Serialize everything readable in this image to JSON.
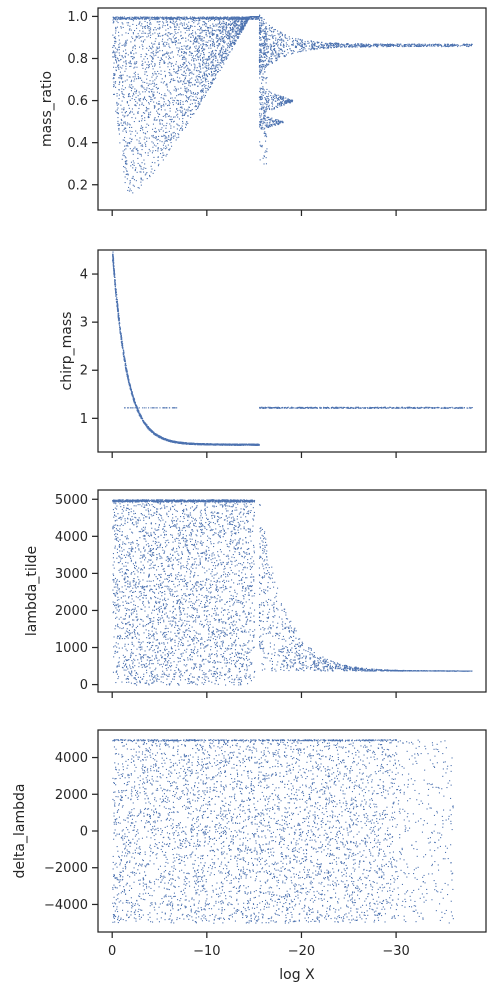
{
  "chart_data": [
    {
      "type": "scatter",
      "ylabel": "mass_ratio",
      "xlabel": "",
      "xlim": [
        1.5,
        -39.5
      ],
      "ylim": [
        0.08,
        1.04
      ],
      "x_ticks": [
        0,
        -10,
        -20,
        -30
      ],
      "y_ticks": [
        0.2,
        0.4,
        0.6,
        0.8,
        1.0
      ],
      "y_tick_labels": [
        "0.2",
        "0.4",
        "0.6",
        "0.8",
        "1.0"
      ],
      "show_x_tick_labels": false,
      "color": "#4c72b0",
      "regions": [
        {
          "x": [
            0,
            -15.5
          ],
          "y": [
            0.13,
            1.0
          ],
          "description": "dense cloud, lower edge rising from 0.13 near x=-1.5 to 1.0 by x=-15"
        },
        {
          "x": [
            -15.5,
            -38
          ],
          "y": [
            0.84,
            0.9
          ],
          "description": "narrowing band converging to ~0.86"
        },
        {
          "x": [
            -15.5,
            -19
          ],
          "y": [
            0.55,
            0.68
          ],
          "description": "wedge near 0.6"
        },
        {
          "x": [
            -15.5,
            -18
          ],
          "y": [
            0.45,
            0.55
          ],
          "description": "wedge near 0.5"
        }
      ]
    },
    {
      "type": "scatter",
      "ylabel": "chirp_mass",
      "xlabel": "",
      "xlim": [
        1.5,
        -39.5
      ],
      "ylim": [
        0.3,
        4.5
      ],
      "x_ticks": [
        0,
        -10,
        -20,
        -30
      ],
      "y_ticks": [
        1,
        2,
        3,
        4
      ],
      "y_tick_labels": [
        "1",
        "2",
        "3",
        "4"
      ],
      "show_x_tick_labels": false,
      "color": "#4c72b0",
      "regions": [
        {
          "x": [
            0,
            -13
          ],
          "y": [
            0.45,
            4.3
          ],
          "description": "decaying curve from ~4.3 at x=0 down to ~0.45"
        },
        {
          "x": [
            -15.5,
            -38
          ],
          "y": [
            1.22,
            1.24
          ],
          "description": "flat line at ~1.23"
        }
      ]
    },
    {
      "type": "scatter",
      "ylabel": "lambda_tilde",
      "xlabel": "",
      "xlim": [
        1.5,
        -39.5
      ],
      "ylim": [
        -200,
        5250
      ],
      "x_ticks": [
        0,
        -10,
        -20,
        -30
      ],
      "y_ticks": [
        0,
        1000,
        2000,
        3000,
        4000,
        5000
      ],
      "y_tick_labels": [
        "0",
        "1000",
        "2000",
        "3000",
        "4000",
        "5000"
      ],
      "show_x_tick_labels": false,
      "color": "#4c72b0",
      "regions": [
        {
          "x": [
            0,
            -15
          ],
          "y": [
            0,
            5000
          ],
          "description": "uniform dense cloud"
        },
        {
          "x": [
            -15.5,
            -38
          ],
          "y": [
            380,
            5000
          ],
          "description": "funnel converging to ~400"
        }
      ]
    },
    {
      "type": "scatter",
      "ylabel": "delta_lambda",
      "xlabel": "log X",
      "xlim": [
        1.5,
        -39.5
      ],
      "ylim": [
        -5500,
        5500
      ],
      "x_ticks": [
        0,
        -10,
        -20,
        -30
      ],
      "x_tick_labels": [
        "0",
        "−10",
        "−20",
        "−30"
      ],
      "y_ticks": [
        -4000,
        -2000,
        0,
        2000,
        4000
      ],
      "y_tick_labels": [
        "−4000",
        "−2000",
        "0",
        "2000",
        "4000"
      ],
      "show_x_tick_labels": true,
      "color": "#4c72b0",
      "regions": [
        {
          "x": [
            0,
            -31
          ],
          "y": [
            -5000,
            5000
          ],
          "description": "uniform dense cloud, thinning past x=-30"
        }
      ]
    }
  ]
}
